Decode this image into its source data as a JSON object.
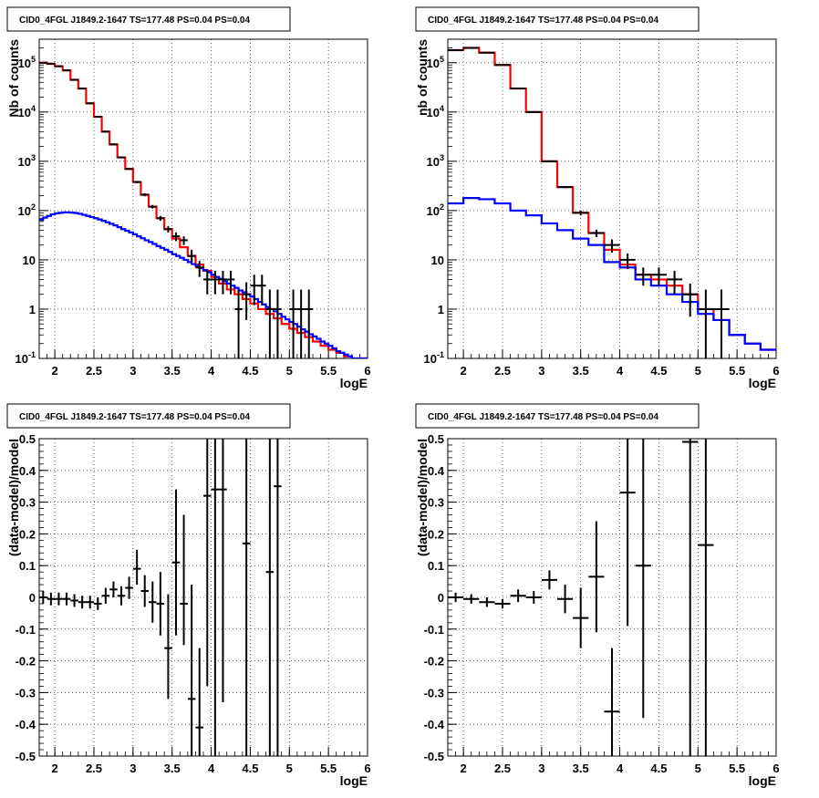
{
  "chart_data": [
    {
      "type": "line",
      "title": "CID0_4FGL J1849.2-1647 TS=177.48 PS=0.04 PS=0.04",
      "xlabel": "logE",
      "ylabel": "Nb of counts",
      "logy": true,
      "xlim": [
        1.8,
        6.0
      ],
      "ylim": [
        0.1,
        300000
      ],
      "grid": true,
      "x_ticks": [
        "2",
        "2.5",
        "3",
        "3.5",
        "4",
        "4.5",
        "5",
        "5.5",
        "6"
      ],
      "y_ticks": [
        "10^-1",
        "1",
        "10",
        "10^2",
        "10^3",
        "10^4",
        "10^5"
      ],
      "series": [
        {
          "color": "#ff0000",
          "bin_width": 0.1,
          "x": [
            1.85,
            1.95,
            2.05,
            2.15,
            2.25,
            2.35,
            2.45,
            2.55,
            2.65,
            2.75,
            2.85,
            2.95,
            3.05,
            3.15,
            3.25,
            3.35,
            3.45,
            3.55,
            3.65,
            3.75,
            3.85,
            3.95,
            4.05,
            4.15,
            4.25,
            4.35,
            4.45,
            4.55,
            4.65,
            4.75,
            4.85,
            4.95,
            5.05,
            5.15,
            5.25,
            5.35,
            5.45,
            5.55,
            5.65,
            5.75,
            5.85,
            5.95
          ],
          "values": [
            100000,
            95000,
            85000,
            70000,
            45000,
            30000,
            15000,
            8000,
            4000,
            2200,
            1200,
            700,
            380,
            210,
            120,
            70,
            42,
            27,
            18,
            12,
            8,
            6,
            4.5,
            3.3,
            2.5,
            2,
            1.6,
            1.3,
            1.0,
            0.8,
            0.65,
            0.5,
            0.4,
            0.33,
            0.27,
            0.22,
            0.18,
            0.15,
            0.13,
            0.11,
            0.1,
            0.1
          ]
        },
        {
          "color": "#0000ff",
          "bin_width": 0.05,
          "x": [
            1.825,
            1.875,
            1.925,
            1.975,
            2.025,
            2.075,
            2.125,
            2.175,
            2.225,
            2.275,
            2.325,
            2.375,
            2.425,
            2.475,
            2.525,
            2.575,
            2.625,
            2.675,
            2.725,
            2.775,
            2.825,
            2.875,
            2.925,
            2.975,
            3.025,
            3.075,
            3.125,
            3.175,
            3.225,
            3.275,
            3.325,
            3.375,
            3.425,
            3.475,
            3.525,
            3.575,
            3.625,
            3.675,
            3.725,
            3.775,
            3.825,
            3.875,
            3.925,
            3.975,
            4.025,
            4.075,
            4.125,
            4.175,
            4.225,
            4.275,
            4.325,
            4.375,
            4.425,
            4.475,
            4.525,
            4.575,
            4.625,
            4.675,
            4.725,
            4.775,
            4.825,
            4.875,
            4.925,
            4.975,
            5.025,
            5.075,
            5.125,
            5.175,
            5.225,
            5.275,
            5.325,
            5.375,
            5.425,
            5.475,
            5.525,
            5.575,
            5.625,
            5.675,
            5.725,
            5.775,
            5.825,
            5.875,
            5.925,
            5.975
          ],
          "values": [
            65,
            72,
            78,
            84,
            88,
            90,
            92,
            92,
            91,
            89,
            86,
            82,
            78,
            74,
            70,
            66,
            62,
            58,
            54,
            50,
            46,
            42,
            39,
            36,
            33,
            30,
            27.5,
            25,
            23,
            21,
            19,
            17.5,
            16,
            14.5,
            13,
            12,
            11,
            10,
            9,
            8.2,
            7.5,
            6.8,
            6.2,
            5.6,
            5,
            4.5,
            4.1,
            3.7,
            3.3,
            3,
            2.7,
            2.4,
            2.2,
            2,
            1.8,
            1.6,
            1.4,
            1.25,
            1.1,
            1,
            0.9,
            0.8,
            0.7,
            0.62,
            0.55,
            0.5,
            0.44,
            0.39,
            0.35,
            0.31,
            0.28,
            0.25,
            0.22,
            0.2,
            0.18,
            0.16,
            0.14,
            0.13,
            0.12,
            0.11,
            0.1,
            0.1,
            0.1,
            0.1
          ]
        }
      ],
      "data_points": {
        "color": "#000000",
        "xerr": 0.05,
        "x": [
          1.85,
          1.95,
          2.05,
          2.15,
          2.25,
          2.35,
          2.45,
          2.55,
          2.65,
          2.75,
          2.85,
          2.95,
          3.05,
          3.15,
          3.25,
          3.35,
          3.45,
          3.55,
          3.65,
          3.75,
          3.85,
          3.95,
          4.05,
          4.15,
          4.25,
          4.35,
          4.45,
          4.55,
          4.65,
          4.75,
          4.85,
          5.05,
          5.15,
          5.25
        ],
        "y": [
          100000,
          95000,
          85000,
          70000,
          45000,
          30000,
          15000,
          8000,
          4000,
          2200,
          1200,
          700,
          380,
          210,
          120,
          70,
          42,
          30,
          25,
          12,
          7,
          4,
          4,
          4,
          4,
          1,
          2,
          3,
          3,
          1,
          1,
          1,
          1,
          1
        ],
        "ylo": [
          99000,
          94000,
          84000,
          69000,
          44500,
          29500,
          14800,
          7900,
          3950,
          2150,
          1170,
          680,
          360,
          195,
          110,
          62,
          36,
          24,
          20,
          9,
          4.5,
          2,
          2,
          2,
          2,
          0.1,
          0.6,
          1.2,
          1.2,
          0.1,
          0.1,
          0.1,
          0.1,
          0.1
        ],
        "yhi": [
          101000,
          96000,
          86000,
          71000,
          45500,
          30500,
          15200,
          8100,
          4050,
          2250,
          1230,
          720,
          400,
          225,
          130,
          78,
          48,
          36,
          30,
          16,
          9.5,
          6,
          6,
          6,
          6,
          2.5,
          3.5,
          5,
          5,
          2.5,
          2.5,
          2.5,
          2.5,
          2.5
        ]
      }
    },
    {
      "type": "line",
      "title": "CID0_4FGL J1849.2-1647 TS=177.48 PS=0.04 PS=0.04",
      "xlabel": "logE",
      "ylabel": "nb of counts",
      "logy": true,
      "xlim": [
        1.8,
        6.0
      ],
      "ylim": [
        0.1,
        300000
      ],
      "grid": true,
      "x_ticks": [
        "2",
        "2.5",
        "3",
        "3.5",
        "4",
        "4.5",
        "5",
        "5.5",
        "6"
      ],
      "y_ticks": [
        "10^-1",
        "1",
        "10",
        "10^2",
        "10^3",
        "10^4",
        "10^5"
      ],
      "series": [
        {
          "color": "#ff0000",
          "bin_width": 0.2,
          "x": [
            1.9,
            2.1,
            2.3,
            2.5,
            2.7,
            2.9,
            3.1,
            3.3,
            3.5,
            3.7,
            3.9,
            4.1,
            4.3,
            4.5,
            4.7,
            4.9,
            5.1,
            5.3,
            5.5,
            5.7,
            5.9
          ],
          "values": [
            180000,
            200000,
            160000,
            90000,
            30000,
            10000,
            1000,
            300,
            90,
            35,
            16,
            8,
            5,
            4,
            3,
            2,
            1,
            0.6,
            0.3,
            0.2,
            0.15
          ]
        },
        {
          "color": "#0000ff",
          "bin_width": 0.2,
          "x": [
            1.9,
            2.1,
            2.3,
            2.5,
            2.7,
            2.9,
            3.1,
            3.3,
            3.5,
            3.7,
            3.9,
            4.1,
            4.3,
            4.5,
            4.7,
            4.9,
            5.1,
            5.3,
            5.5,
            5.7,
            5.9
          ],
          "values": [
            140,
            180,
            170,
            140,
            100,
            80,
            55,
            40,
            27,
            20,
            9,
            7,
            4,
            3,
            2,
            1.4,
            0.8,
            0.6,
            0.3,
            0.2,
            0.15
          ]
        }
      ],
      "data_points": {
        "color": "#000000",
        "xerr": 0.1,
        "x": [
          1.9,
          2.1,
          2.3,
          2.5,
          2.7,
          2.9,
          3.1,
          3.3,
          3.5,
          3.7,
          3.9,
          4.1,
          4.3,
          4.5,
          4.7,
          4.9,
          5.1,
          5.3
        ],
        "y": [
          180000,
          200000,
          160000,
          90000,
          30000,
          10000,
          1000,
          300,
          90,
          35,
          20,
          10,
          5,
          5,
          4,
          2,
          1,
          1
        ],
        "ylo": [
          178000,
          198000,
          158000,
          89000,
          29700,
          9900,
          970,
          285,
          80,
          29,
          14,
          6.5,
          3,
          3,
          2,
          0.7,
          0.1,
          0.1
        ],
        "yhi": [
          182000,
          202000,
          162000,
          91000,
          30300,
          10100,
          1030,
          315,
          100,
          41,
          26,
          13.5,
          7,
          7,
          6,
          3.3,
          2.5,
          2.5
        ]
      }
    },
    {
      "type": "scatter",
      "title": "CID0_4FGL J1849.2-1647 TS=177.48 PS=0.04 PS=0.04",
      "xlabel": "logE",
      "ylabel": "(data-model)/model",
      "xlim": [
        1.8,
        6.0
      ],
      "ylim": [
        -0.5,
        0.5
      ],
      "grid": true,
      "x_ticks": [
        "2",
        "2.5",
        "3",
        "3.5",
        "4",
        "4.5",
        "5",
        "5.5",
        "6"
      ],
      "y_ticks": [
        "-0.5",
        "-0.4",
        "-0.3",
        "-0.2",
        "-0.1",
        "0",
        "0.1",
        "0.2",
        "0.3",
        "0.4",
        "0.5"
      ],
      "data_points": {
        "color": "#000000",
        "xerr": 0.05,
        "x": [
          1.85,
          1.95,
          2.05,
          2.15,
          2.25,
          2.35,
          2.45,
          2.55,
          2.65,
          2.75,
          2.85,
          2.95,
          3.05,
          3.15,
          3.25,
          3.35,
          3.45,
          3.55,
          3.65,
          3.75,
          3.85,
          3.95,
          4.05,
          4.15,
          4.45,
          4.75,
          4.85
        ],
        "y": [
          0,
          -0.005,
          -0.005,
          -0.005,
          -0.01,
          -0.015,
          -0.015,
          -0.02,
          0.005,
          0.025,
          0.005,
          0.03,
          0.09,
          0.02,
          -0.015,
          -0.02,
          -0.16,
          0.11,
          -0.02,
          -0.32,
          -0.41,
          0.32,
          0.34,
          0.34,
          0.17,
          0.08,
          0.35
        ],
        "ylo": [
          -0.02,
          -0.025,
          -0.025,
          -0.025,
          -0.03,
          -0.035,
          -0.035,
          -0.04,
          -0.02,
          0,
          -0.025,
          -0.005,
          0.04,
          -0.03,
          -0.08,
          -0.12,
          -0.32,
          -0.12,
          -0.15,
          -0.5,
          -0.5,
          -0.28,
          -0.5,
          -0.33,
          -0.5,
          -0.5,
          -0.5
        ],
        "yhi": [
          0.02,
          0.015,
          0.015,
          0.015,
          0.01,
          0.005,
          0.005,
          0,
          0.03,
          0.05,
          0.035,
          0.065,
          0.15,
          0.07,
          0.05,
          0.08,
          0.01,
          0.34,
          0.26,
          0.04,
          -0.16,
          0.5,
          0.5,
          0.5,
          0.5,
          0.5,
          0.5
        ]
      }
    },
    {
      "type": "scatter",
      "title": "CID0_4FGL J1849.2-1647 TS=177.48 PS=0.04 PS=0.04",
      "xlabel": "logE",
      "ylabel": "(data-model)/model",
      "xlim": [
        1.8,
        6.0
      ],
      "ylim": [
        -0.5,
        0.5
      ],
      "grid": true,
      "x_ticks": [
        "2",
        "2.5",
        "3",
        "3.5",
        "4",
        "4.5",
        "5",
        "5.5",
        "6"
      ],
      "y_ticks": [
        "-0.5",
        "-0.4",
        "-0.3",
        "-0.2",
        "-0.1",
        "0",
        "0.1",
        "0.2",
        "0.3",
        "0.4",
        "0.5"
      ],
      "data_points": {
        "color": "#000000",
        "xerr": 0.1,
        "x": [
          1.9,
          2.1,
          2.3,
          2.5,
          2.7,
          2.9,
          3.1,
          3.3,
          3.5,
          3.7,
          3.9,
          4.1,
          4.3,
          4.9,
          5.1
        ],
        "y": [
          0,
          -0.005,
          -0.015,
          -0.02,
          0.005,
          0,
          0.055,
          -0.005,
          -0.065,
          0.065,
          -0.36,
          0.33,
          0.1,
          0.49,
          0.165
        ],
        "ylo": [
          -0.015,
          -0.02,
          -0.03,
          -0.035,
          -0.015,
          -0.02,
          0.025,
          -0.05,
          -0.16,
          -0.11,
          -0.5,
          -0.09,
          -0.38,
          -0.5,
          -0.5
        ],
        "yhi": [
          0.015,
          0.01,
          0,
          -0.005,
          0.025,
          0.02,
          0.085,
          0.04,
          0.03,
          0.24,
          -0.16,
          0.5,
          0.5,
          0.5,
          0.5
        ]
      }
    }
  ]
}
